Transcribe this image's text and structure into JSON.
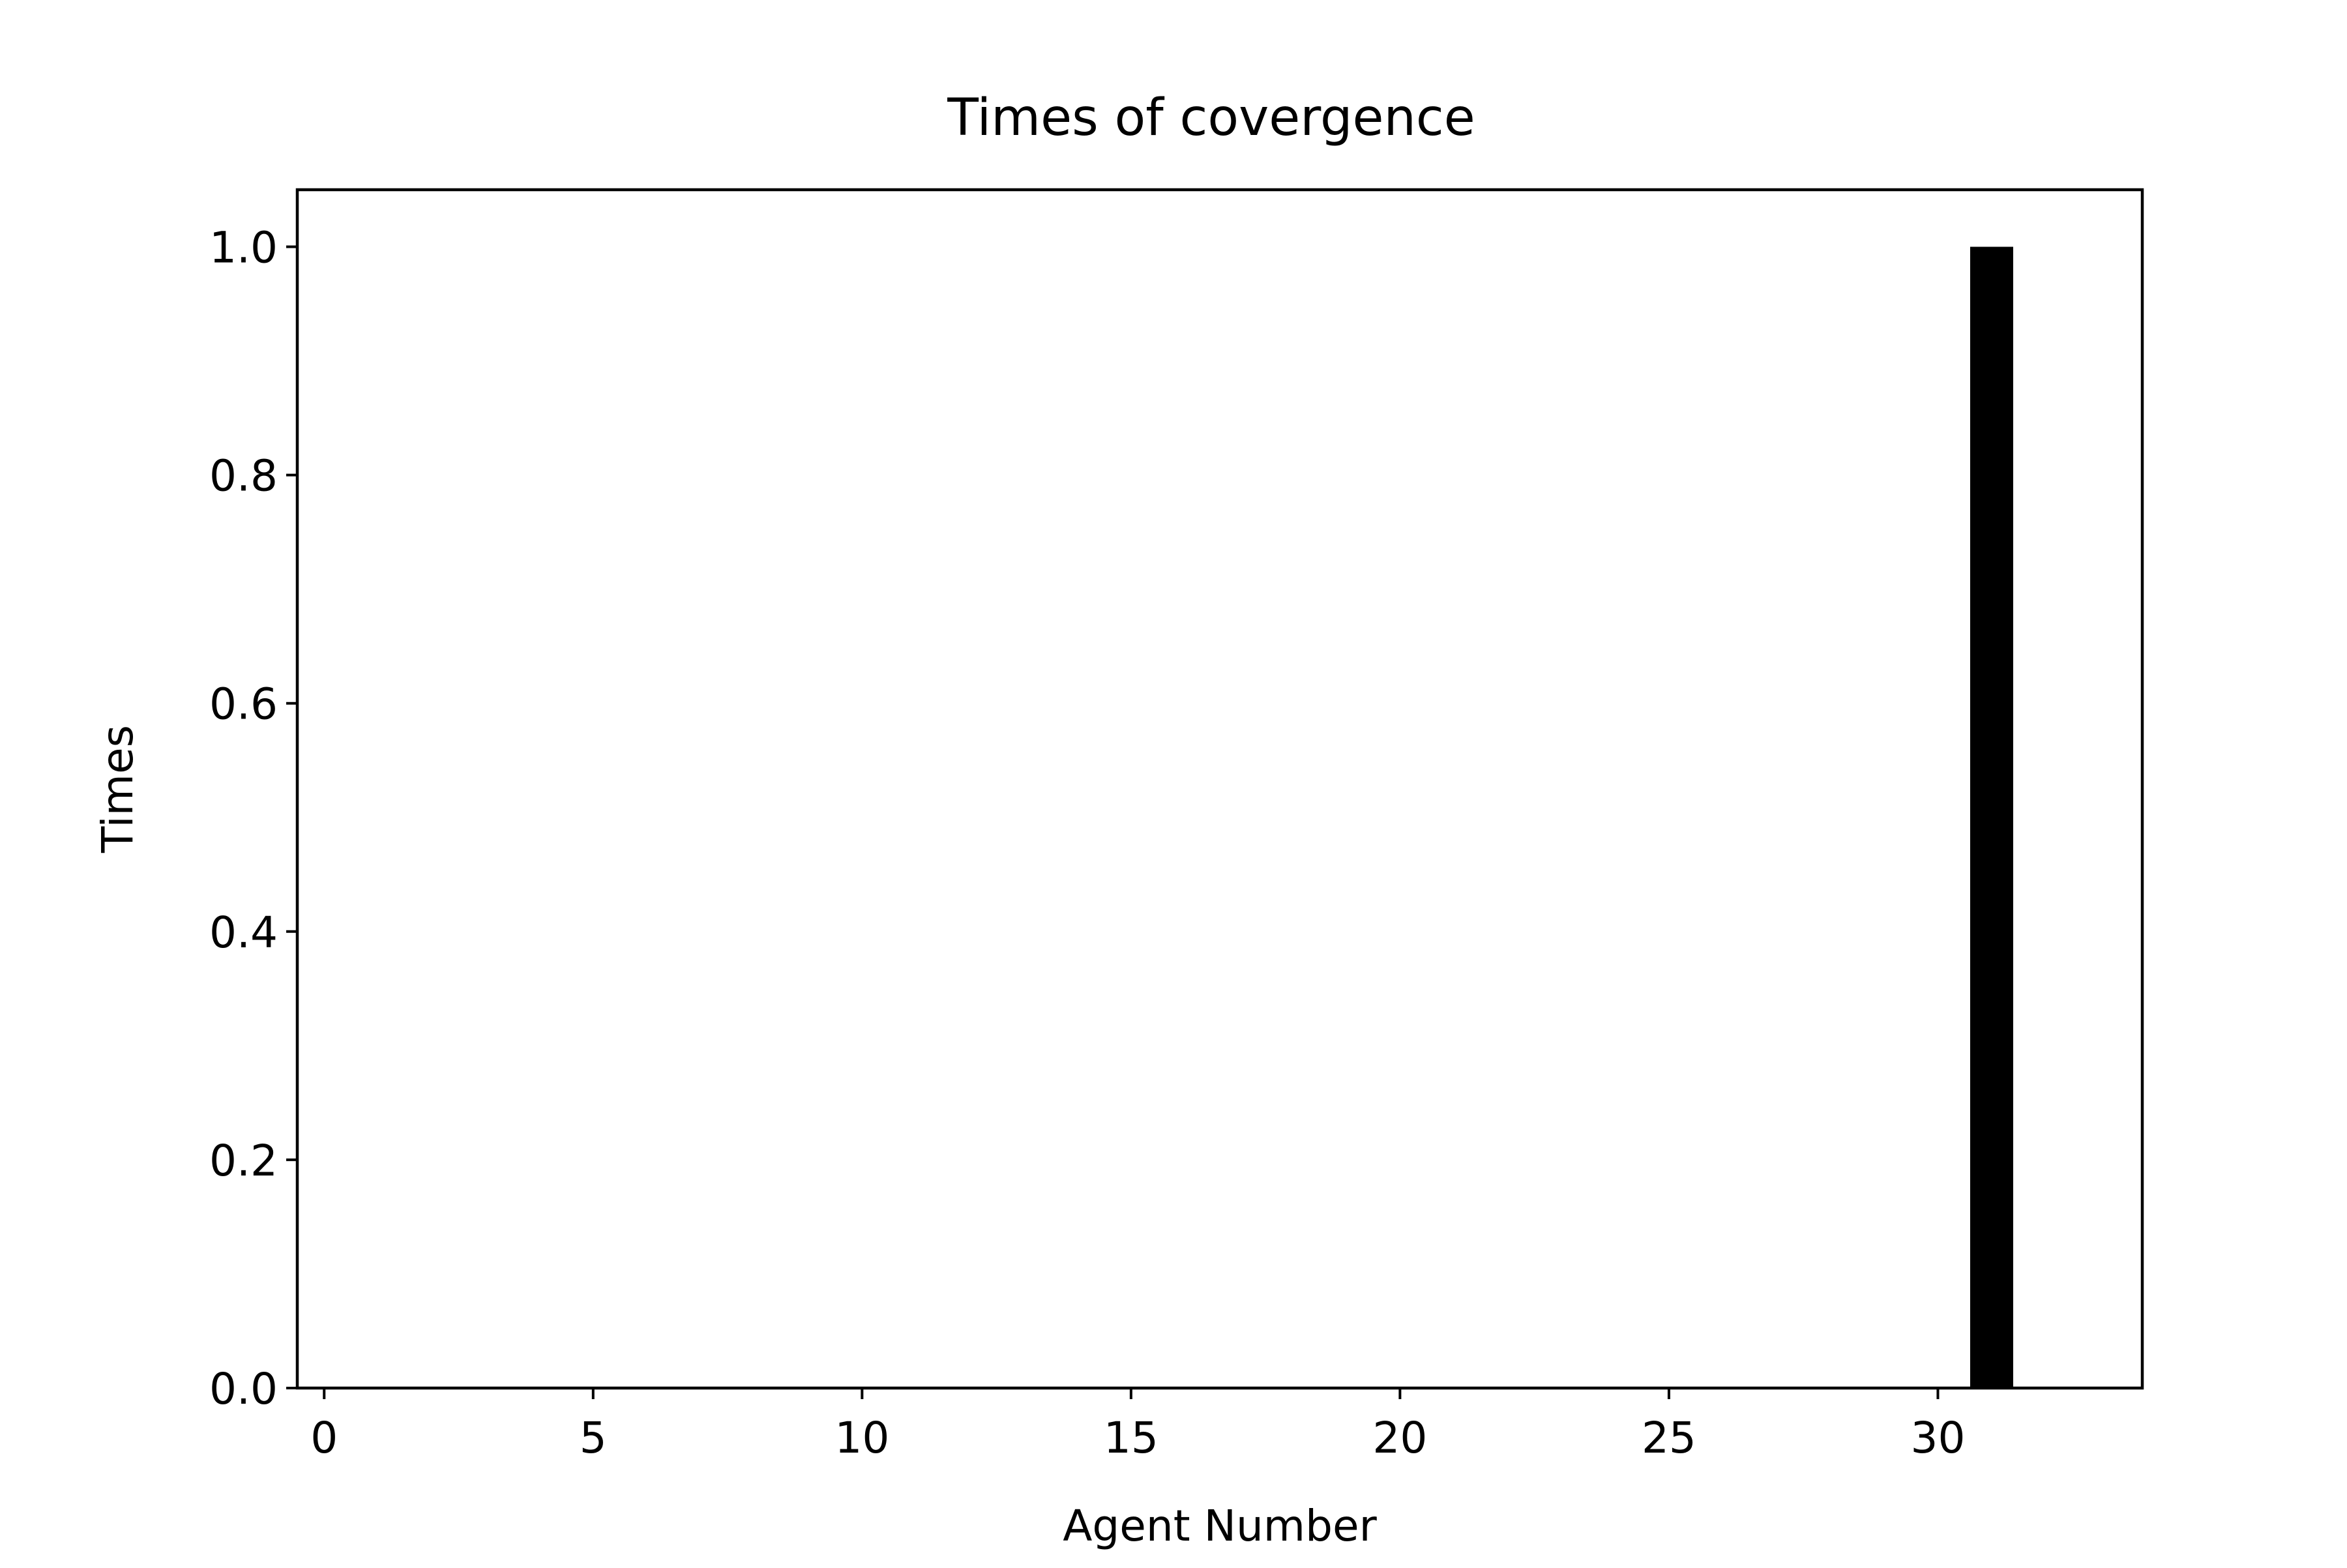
{
  "chart_data": {
    "type": "bar",
    "title": "Times of covergence",
    "xlabel": "Agent Number",
    "ylabel": "Times",
    "x": [
      31
    ],
    "values": [
      1.0
    ],
    "xlim": [
      -0.5,
      33.8
    ],
    "ylim": [
      0.0,
      1.05
    ],
    "xticks": [
      0,
      5,
      10,
      15,
      20,
      25,
      30
    ],
    "xtick_labels": [
      "0",
      "5",
      "10",
      "15",
      "20",
      "25",
      "30"
    ],
    "yticks": [
      0.0,
      0.2,
      0.4,
      0.6,
      0.8,
      1.0
    ],
    "ytick_labels": [
      "0.0",
      "0.2",
      "0.4",
      "0.6",
      "0.8",
      "1.0"
    ],
    "bar_width": 0.8,
    "bar_color": "#000000",
    "grid": false,
    "legend": "none"
  }
}
